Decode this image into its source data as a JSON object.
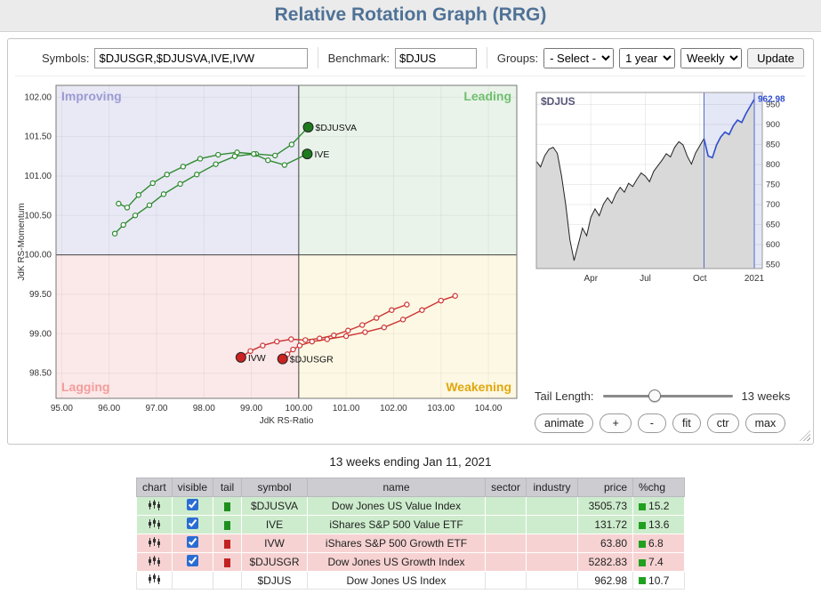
{
  "header": {
    "title": "Relative Rotation Graph (RRG)"
  },
  "toolbar": {
    "symbols_label": "Symbols:",
    "symbols_value": "$DJUSGR,$DJUSVA,IVE,IVW",
    "benchmark_label": "Benchmark:",
    "benchmark_value": "$DJUS",
    "groups_label": "Groups:",
    "groups_value": "- Select -",
    "period_value": "1 year",
    "interval_value": "Weekly",
    "update_label": "Update"
  },
  "controls": {
    "tail_length_label": "Tail Length:",
    "tail_length_value": "13 weeks",
    "slider_thumb_left": "40%",
    "buttons": {
      "animate": "animate",
      "zoom_in": "+",
      "zoom_out": "-",
      "fit": "fit",
      "ctr": "ctr",
      "max": "max"
    }
  },
  "caption": "13 weeks ending Jan 11, 2021",
  "table": {
    "headers": [
      "chart",
      "visible",
      "tail",
      "symbol",
      "name",
      "sector",
      "industry",
      "price",
      "%chg"
    ],
    "rows": [
      {
        "symbol": "$DJUSVA",
        "name": "Dow Jones US Value Index",
        "sector": "",
        "industry": "",
        "price": "3505.73",
        "chg": "15.2",
        "visible": true,
        "tail_color": "#1e8f1e",
        "chg_color": "#1fa11f",
        "row_color": "#cdeccd"
      },
      {
        "symbol": "IVE",
        "name": "iShares S&P 500 Value ETF",
        "sector": "",
        "industry": "",
        "price": "131.72",
        "chg": "13.6",
        "visible": true,
        "tail_color": "#1e8f1e",
        "chg_color": "#1fa11f",
        "row_color": "#cdeccd"
      },
      {
        "symbol": "IVW",
        "name": "iShares S&P 500 Growth ETF",
        "sector": "",
        "industry": "",
        "price": "63.80",
        "chg": "6.8",
        "visible": true,
        "tail_color": "#c22222",
        "chg_color": "#1fa11f",
        "row_color": "#f7d2d2"
      },
      {
        "symbol": "$DJUSGR",
        "name": "Dow Jones US Growth Index",
        "sector": "",
        "industry": "",
        "price": "5282.83",
        "chg": "7.4",
        "visible": true,
        "tail_color": "#c22222",
        "chg_color": "#1fa11f",
        "row_color": "#f7d2d2"
      },
      {
        "symbol": "$DJUS",
        "name": "Dow Jones US Index",
        "sector": "",
        "industry": "",
        "price": "962.98",
        "chg": "10.7",
        "visible": null,
        "tail_color": null,
        "chg_color": "#1fa11f",
        "row_color": "#ffffff"
      }
    ]
  },
  "chart_data": [
    {
      "type": "scatter",
      "title": "RRG quadrant chart",
      "xlabel": "JdK RS-Ratio",
      "ylabel": "JdK RS-Momentum",
      "xlim": [
        94.88,
        104.6
      ],
      "ylim": [
        98.18,
        102.15
      ],
      "xticks": [
        95,
        96,
        97,
        98,
        99,
        100,
        101,
        102,
        103,
        104
      ],
      "yticks": [
        98.5,
        99.0,
        99.5,
        100.0,
        100.5,
        101.0,
        101.5,
        102.0
      ],
      "center": [
        100,
        100
      ],
      "quadrants": [
        {
          "name": "Improving",
          "position": "top-left",
          "bg": "#e9e9f6",
          "label_color": "#9b9bd4"
        },
        {
          "name": "Leading",
          "position": "top-right",
          "bg": "#e9f3e9",
          "label_color": "#6fbf6f"
        },
        {
          "name": "Lagging",
          "position": "bottom-left",
          "bg": "#fbe8e8",
          "label_color": "#f49c9c"
        },
        {
          "name": "Weakening",
          "position": "bottom-right",
          "bg": "#fdf8e3",
          "label_color": "#e0a70e"
        }
      ],
      "series": [
        {
          "name": "$DJUSVA",
          "color": "#2e8b2e",
          "dot_color": "#1d7a1d",
          "points": [
            [
              96.2,
              100.65
            ],
            [
              96.38,
              100.6
            ],
            [
              96.62,
              100.76
            ],
            [
              96.92,
              100.91
            ],
            [
              97.22,
              101.02
            ],
            [
              97.56,
              101.12
            ],
            [
              97.92,
              101.22
            ],
            [
              98.3,
              101.27
            ],
            [
              98.7,
              101.3
            ],
            [
              99.1,
              101.28
            ],
            [
              99.5,
              101.26
            ],
            [
              99.85,
              101.4
            ],
            [
              100.2,
              101.62
            ]
          ]
        },
        {
          "name": "IVE",
          "color": "#2e8b2e",
          "dot_color": "#1d7a1d",
          "points": [
            [
              96.12,
              100.27
            ],
            [
              96.3,
              100.38
            ],
            [
              96.55,
              100.5
            ],
            [
              96.85,
              100.63
            ],
            [
              97.15,
              100.77
            ],
            [
              97.5,
              100.9
            ],
            [
              97.85,
              101.02
            ],
            [
              98.25,
              101.15
            ],
            [
              98.65,
              101.25
            ],
            [
              99.05,
              101.28
            ],
            [
              99.35,
              101.2
            ],
            [
              99.7,
              101.14
            ],
            [
              100.18,
              101.28
            ]
          ]
        },
        {
          "name": "IVW",
          "color": "#cc3333",
          "dot_color": "#cc2222",
          "points": [
            [
              102.28,
              99.37
            ],
            [
              101.96,
              99.3
            ],
            [
              101.64,
              99.2
            ],
            [
              101.34,
              99.11
            ],
            [
              101.04,
              99.04
            ],
            [
              100.74,
              98.98
            ],
            [
              100.44,
              98.94
            ],
            [
              100.14,
              98.92
            ],
            [
              99.84,
              98.93
            ],
            [
              99.54,
              98.9
            ],
            [
              99.24,
              98.85
            ],
            [
              98.98,
              98.78
            ],
            [
              98.78,
              98.7
            ]
          ]
        },
        {
          "name": "$DJUSGR",
          "color": "#cc3333",
          "dot_color": "#cc2222",
          "points": [
            [
              103.3,
              99.48
            ],
            [
              103.0,
              99.42
            ],
            [
              102.6,
              99.3
            ],
            [
              102.2,
              99.18
            ],
            [
              101.8,
              99.08
            ],
            [
              101.4,
              99.02
            ],
            [
              101.0,
              98.97
            ],
            [
              100.6,
              98.93
            ],
            [
              100.28,
              98.9
            ],
            [
              100.02,
              98.85
            ],
            [
              99.88,
              98.8
            ],
            [
              99.76,
              98.74
            ],
            [
              99.66,
              98.68
            ]
          ]
        }
      ]
    },
    {
      "type": "area",
      "title": "$DJUS",
      "last_price_label": "962.98",
      "ylim": [
        540,
        980
      ],
      "yticks": [
        550,
        600,
        650,
        700,
        750,
        800,
        850,
        900,
        950
      ],
      "xtick_labels": [
        "Apr",
        "Jul",
        "Oct",
        "2021"
      ],
      "xtick_positions": [
        13,
        26,
        39,
        52
      ],
      "highlight_start_index": 40,
      "line_color": "#222222",
      "fill_color": "#d9d9d9",
      "highlight_color": "#2f4fd0",
      "values": [
        808,
        794,
        822,
        838,
        843,
        828,
        772,
        700,
        612,
        560,
        600,
        641,
        622,
        668,
        689,
        672,
        701,
        717,
        703,
        727,
        743,
        731,
        753,
        745,
        763,
        779,
        771,
        757,
        783,
        797,
        811,
        827,
        819,
        843,
        857,
        849,
        821,
        801,
        829,
        847,
        865,
        821,
        817,
        849,
        869,
        881,
        875,
        897,
        911,
        905,
        927,
        945,
        962.98
      ]
    }
  ]
}
